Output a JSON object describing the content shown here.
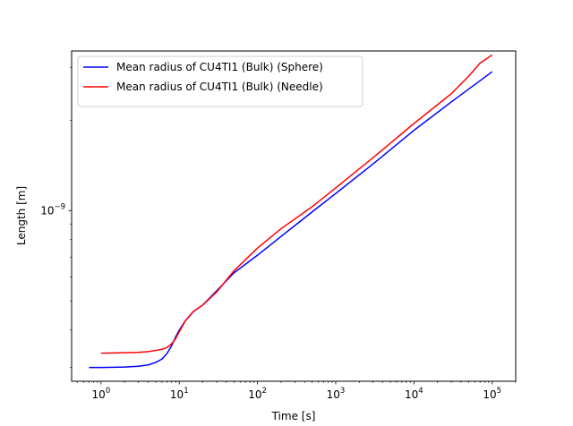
{
  "chart_data": {
    "type": "line",
    "xscale": "log",
    "yscale": "log",
    "xlabel": "Time [s]",
    "ylabel": "Length [m]",
    "xlim": [
      0.42,
      200000
    ],
    "ylim": [
      2.7e-10,
      3.4e-09
    ],
    "x_ticks": [
      {
        "value": 1,
        "base": "10",
        "exp": "0"
      },
      {
        "value": 10,
        "base": "10",
        "exp": "1"
      },
      {
        "value": 100,
        "base": "10",
        "exp": "2"
      },
      {
        "value": 1000,
        "base": "10",
        "exp": "3"
      },
      {
        "value": 10000,
        "base": "10",
        "exp": "4"
      },
      {
        "value": 100000,
        "base": "10",
        "exp": "5"
      }
    ],
    "y_ticks": [
      {
        "value": 1e-09,
        "base": "10",
        "exp": "−9"
      }
    ],
    "grid": false,
    "legend_position": "top-left",
    "series": [
      {
        "name": "Mean radius of CU4TI1 (Bulk) (Sphere)",
        "color": "#0000ff",
        "x": [
          0.7,
          1,
          2,
          3,
          4,
          5,
          6,
          7,
          8,
          9,
          10,
          12,
          15,
          20,
          30,
          50,
          100,
          200,
          500,
          1000,
          3000,
          10000,
          30000,
          100000
        ],
        "y": [
          3e-10,
          3e-10,
          3.01e-10,
          3.03e-10,
          3.06e-10,
          3.12e-10,
          3.2e-10,
          3.35e-10,
          3.55e-10,
          3.8e-10,
          4e-10,
          4.3e-10,
          4.6e-10,
          4.85e-10,
          5.4e-10,
          6.2e-10,
          7.1e-10,
          8.2e-10,
          9.9e-10,
          1.14e-09,
          1.43e-09,
          1.85e-09,
          2.3e-09,
          2.9e-09
        ]
      },
      {
        "name": "Mean radius of CU4TI1 (Bulk) (Needle)",
        "color": "#ff0000",
        "x": [
          1,
          2,
          3,
          4,
          5,
          6,
          7,
          8,
          9,
          10,
          12,
          15,
          20,
          30,
          50,
          100,
          200,
          500,
          1000,
          3000,
          10000,
          30000,
          50000,
          70000,
          100000
        ],
        "y": [
          3.35e-10,
          3.36e-10,
          3.37e-10,
          3.39e-10,
          3.42e-10,
          3.45e-10,
          3.5e-10,
          3.6e-10,
          3.75e-10,
          3.95e-10,
          4.3e-10,
          4.6e-10,
          4.85e-10,
          5.35e-10,
          6.3e-10,
          7.5e-10,
          8.7e-10,
          1.03e-09,
          1.19e-09,
          1.5e-09,
          1.95e-09,
          2.45e-09,
          2.8e-09,
          3.1e-09,
          3.3e-09
        ]
      }
    ]
  }
}
